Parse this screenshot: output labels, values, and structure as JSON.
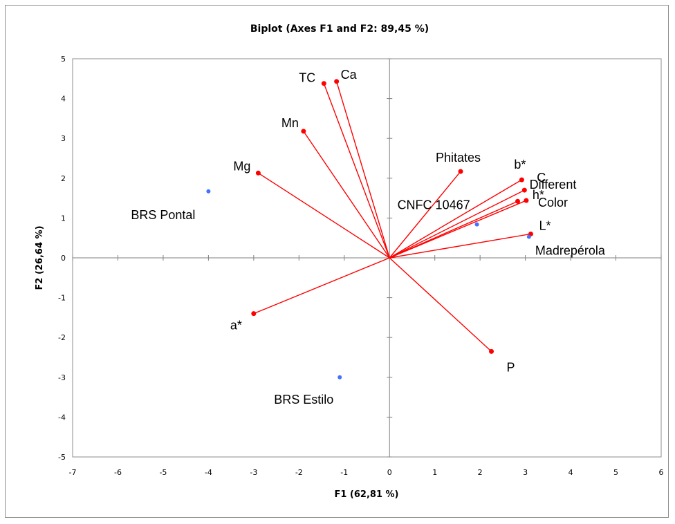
{
  "chart_data": {
    "type": "scatter",
    "title": "Biplot (Axes F1 and F2: 89,45 %)",
    "xlabel": "F1 (62,81 %)",
    "ylabel": "F2 (26,64 %)",
    "xlim": [
      -7,
      6
    ],
    "ylim": [
      -5,
      5
    ],
    "x_ticks": [
      "-7",
      "-6",
      "-5",
      "-4",
      "-3",
      "-2",
      "-1",
      "0",
      "1",
      "2",
      "3",
      "4",
      "5",
      "6"
    ],
    "y_ticks": [
      "5",
      "4",
      "3",
      "2",
      "1",
      "0",
      "-1",
      "-2",
      "-3",
      "-4",
      "-5"
    ],
    "grid": false,
    "colors": {
      "variables": "#ff0000",
      "observations": "#4472ff"
    },
    "variables": [
      {
        "label": "TC",
        "x": -1.45,
        "y": 4.38
      },
      {
        "label": "Ca",
        "x": -1.17,
        "y": 4.43
      },
      {
        "label": "Mn",
        "x": -1.9,
        "y": 3.18
      },
      {
        "label": "Mg",
        "x": -2.9,
        "y": 2.13
      },
      {
        "label": "Phitates",
        "x": 1.57,
        "y": 2.17
      },
      {
        "label": "b*",
        "x": 2.92,
        "y": 1.96
      },
      {
        "label": "C",
        "x": 2.98,
        "y": 1.7
      },
      {
        "label": "h*",
        "x": 3.02,
        "y": 1.44
      },
      {
        "label": "Different Color",
        "x": 2.83,
        "y": 1.42
      },
      {
        "label": "L*",
        "x": 3.12,
        "y": 0.6
      },
      {
        "label": "a*",
        "x": -3.0,
        "y": -1.4
      },
      {
        "label": "P",
        "x": 2.25,
        "y": -2.35
      }
    ],
    "observations": [
      {
        "label": "BRS Pontal",
        "x": -4.0,
        "y": 1.67
      },
      {
        "label": "CNFC 10467",
        "x": 1.93,
        "y": 0.84
      },
      {
        "label": "Madrepérola",
        "x": 3.08,
        "y": 0.53
      },
      {
        "label": "BRS Estilo",
        "x": -1.1,
        "y": -3.0
      }
    ]
  }
}
